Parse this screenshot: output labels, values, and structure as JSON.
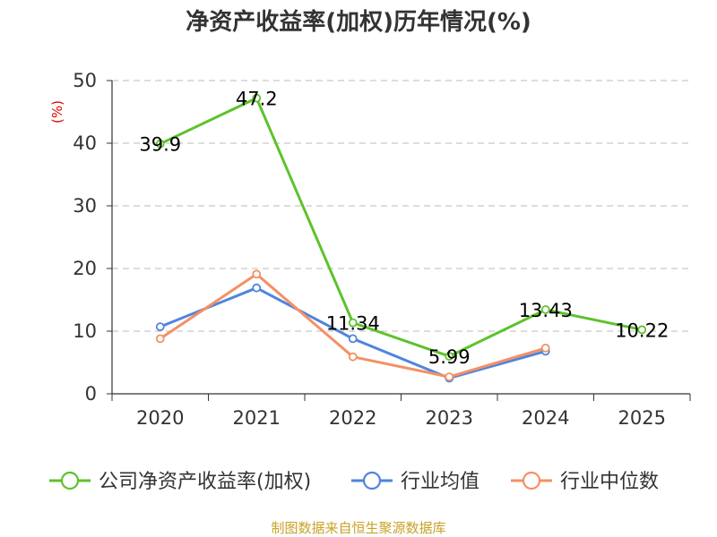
{
  "chart_data": {
    "type": "line",
    "title": "净资产收益率(加权)历年情况(%)",
    "ylabel": "(%)",
    "xlabel": "",
    "ylim": [
      0,
      50
    ],
    "yticks": [
      "0",
      "10",
      "20",
      "30",
      "40",
      "50"
    ],
    "categories": [
      "2020",
      "2021",
      "2022",
      "2023",
      "2024",
      "2025"
    ],
    "series": [
      {
        "name": "公司净资产收益率(加权)",
        "color": "#5ec22c",
        "values": [
          39.9,
          47.2,
          11.34,
          5.99,
          13.43,
          10.22
        ],
        "labels": [
          "39.9",
          "47.2",
          "11.34",
          "5.99",
          "13.43",
          "10.22"
        ]
      },
      {
        "name": "行业均值",
        "color": "#5084de",
        "values": [
          10.7,
          16.9,
          8.8,
          2.5,
          6.8,
          null
        ]
      },
      {
        "name": "行业中位数",
        "color": "#f39164",
        "values": [
          8.8,
          19.1,
          5.9,
          2.7,
          7.3,
          null
        ]
      }
    ],
    "grid": true,
    "legend": "bottom",
    "source": "制图数据来自恒生聚源数据库",
    "colors": {
      "axis": "#333333",
      "grid": "#bbbbbb",
      "ylabel": "#e00000",
      "source": "#c9a227"
    }
  }
}
